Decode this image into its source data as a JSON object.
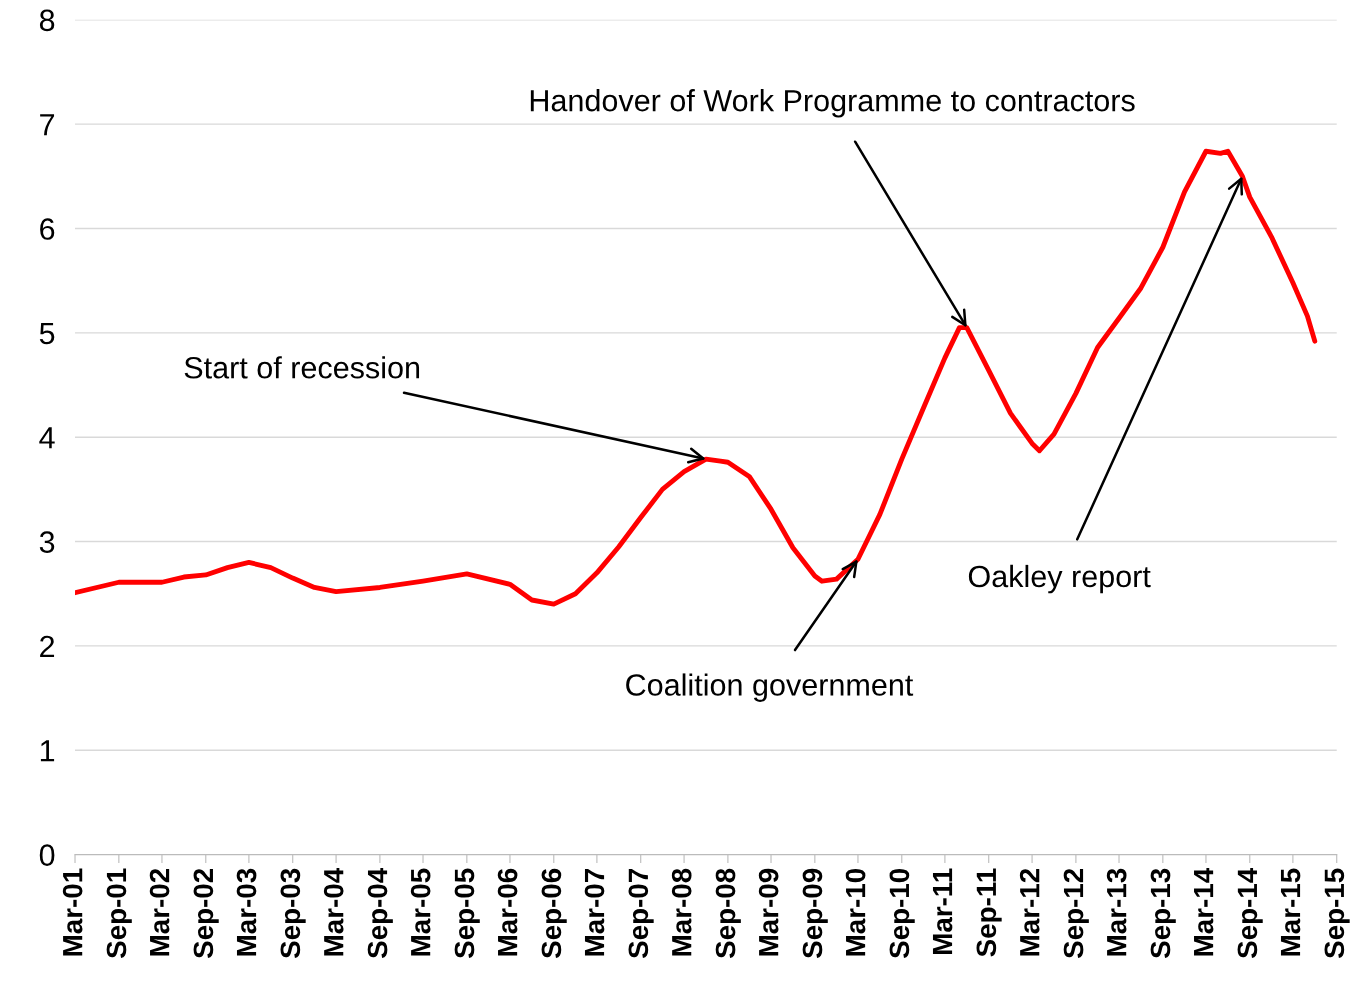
{
  "chart_data": {
    "type": "line",
    "x": [
      "2001-03",
      "2001-09",
      "2002-03",
      "2002-06",
      "2002-09",
      "2002-12",
      "2003-03",
      "2003-06",
      "2003-09",
      "2003-12",
      "2004-03",
      "2004-09",
      "2005-03",
      "2005-09",
      "2006-03",
      "2006-06",
      "2006-09",
      "2006-12",
      "2007-03",
      "2007-06",
      "2007-09",
      "2007-12",
      "2008-03",
      "2008-06",
      "2008-08",
      "2008-09",
      "2008-12",
      "2009-03",
      "2009-06",
      "2009-09",
      "2009-10",
      "2009-12",
      "2010-03",
      "2010-06",
      "2010-09",
      "2010-12",
      "2011-03",
      "2011-05",
      "2011-06",
      "2011-09",
      "2011-12",
      "2012-03",
      "2012-04",
      "2012-06",
      "2012-09",
      "2012-12",
      "2013-03",
      "2013-06",
      "2013-09",
      "2013-12",
      "2014-03",
      "2014-05",
      "2014-06",
      "2014-08",
      "2014-09",
      "2014-12",
      "2015-03",
      "2015-05",
      "2015-06"
    ],
    "series": [
      {
        "color": "#ff0000",
        "values": [
          2.51,
          2.61,
          2.61,
          2.66,
          2.68,
          2.75,
          2.8,
          2.75,
          2.65,
          2.56,
          2.52,
          2.56,
          2.62,
          2.69,
          2.59,
          2.44,
          2.4,
          2.5,
          2.7,
          2.95,
          3.23,
          3.5,
          3.67,
          3.79,
          3.77,
          3.76,
          3.62,
          3.31,
          2.94,
          2.67,
          2.62,
          2.64,
          2.83,
          3.26,
          3.79,
          4.28,
          4.76,
          5.05,
          5.05,
          4.64,
          4.23,
          3.94,
          3.87,
          4.03,
          4.42,
          4.86,
          5.14,
          5.43,
          5.82,
          6.35,
          6.74,
          6.72,
          6.74,
          6.5,
          6.3,
          5.92,
          5.48,
          5.16,
          4.92
        ]
      }
    ],
    "xlim": [
      "2001-03",
      "2015-09"
    ],
    "xticks": [
      {
        "value": "2001-03",
        "label": "Mar-01"
      },
      {
        "value": "2001-09",
        "label": "Sep-01"
      },
      {
        "value": "2002-03",
        "label": "Mar-02"
      },
      {
        "value": "2002-09",
        "label": "Sep-02"
      },
      {
        "value": "2003-03",
        "label": "Mar-03"
      },
      {
        "value": "2003-09",
        "label": "Sep-03"
      },
      {
        "value": "2004-03",
        "label": "Mar-04"
      },
      {
        "value": "2004-09",
        "label": "Sep-04"
      },
      {
        "value": "2005-03",
        "label": "Mar-05"
      },
      {
        "value": "2005-09",
        "label": "Sep-05"
      },
      {
        "value": "2006-03",
        "label": "Mar-06"
      },
      {
        "value": "2006-09",
        "label": "Sep-06"
      },
      {
        "value": "2007-03",
        "label": "Mar-07"
      },
      {
        "value": "2007-09",
        "label": "Sep-07"
      },
      {
        "value": "2008-03",
        "label": "Mar-08"
      },
      {
        "value": "2008-09",
        "label": "Sep-08"
      },
      {
        "value": "2009-03",
        "label": "Mar-09"
      },
      {
        "value": "2009-09",
        "label": "Sep-09"
      },
      {
        "value": "2010-03",
        "label": "Mar-10"
      },
      {
        "value": "2010-09",
        "label": "Sep-10"
      },
      {
        "value": "2011-03",
        "label": "Mar-11"
      },
      {
        "value": "2011-09",
        "label": "Sep-11"
      },
      {
        "value": "2012-03",
        "label": "Mar-12"
      },
      {
        "value": "2012-09",
        "label": "Sep-12"
      },
      {
        "value": "2013-03",
        "label": "Mar-13"
      },
      {
        "value": "2013-09",
        "label": "Sep-13"
      },
      {
        "value": "2014-03",
        "label": "Mar-14"
      },
      {
        "value": "2014-09",
        "label": "Sep-14"
      },
      {
        "value": "2015-03",
        "label": "Mar-15"
      },
      {
        "value": "2015-09",
        "label": "Sep-15"
      }
    ],
    "ylim": [
      0,
      8
    ],
    "yticks": [
      0,
      1,
      2,
      3,
      4,
      5,
      6,
      7,
      8
    ],
    "grid": "y",
    "annotations": [
      {
        "text": "Handover of Work Programme to contractors",
        "x": "2011-06",
        "y": 5.05
      },
      {
        "text": "Start of recession",
        "x": "2008-06",
        "y": 3.79
      },
      {
        "text": "Coalition government",
        "x": "2010-03",
        "y": 2.83
      },
      {
        "text": "Oakley report",
        "x": "2014-08",
        "y": 6.5
      }
    ]
  }
}
